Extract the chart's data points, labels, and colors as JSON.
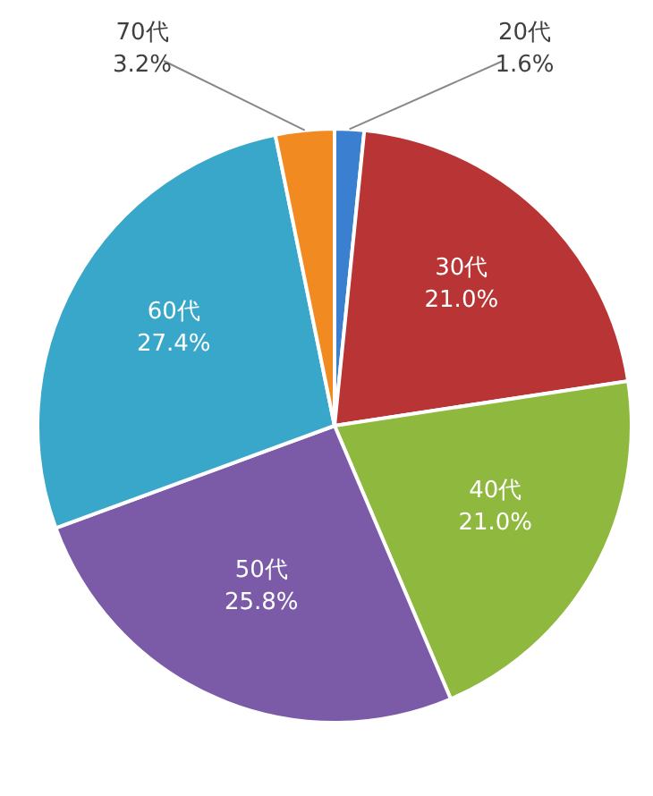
{
  "chart_data": {
    "type": "pie",
    "categories": [
      "20代",
      "30代",
      "40代",
      "50代",
      "60代",
      "70代"
    ],
    "values": [
      1.6,
      21.0,
      21.0,
      25.8,
      27.4,
      3.2
    ],
    "value_labels": [
      "1.6%",
      "21.0%",
      "21.0%",
      "25.8%",
      "27.4%",
      "3.2%"
    ],
    "colors": [
      "#3b7fd0",
      "#b93434",
      "#8fb83e",
      "#7b5ba7",
      "#39a7c9",
      "#f28a22"
    ],
    "legend": false
  }
}
